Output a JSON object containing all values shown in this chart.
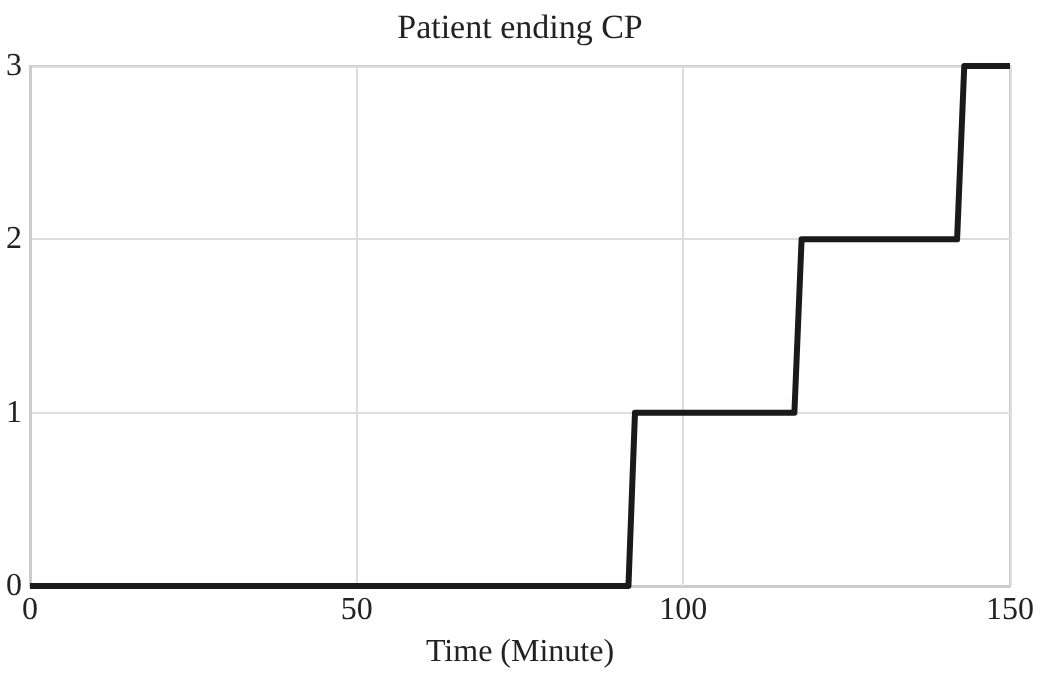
{
  "chart_data": {
    "type": "line",
    "title": "Patient ending CP",
    "xlabel": "Time (Minute)",
    "x": [
      0,
      91.6,
      92.6,
      117,
      118.1,
      141.9,
      143,
      150
    ],
    "series": [
      {
        "color": "#1a1a1a",
        "values": [
          0,
          0,
          1,
          1,
          2,
          2,
          3,
          3
        ]
      }
    ],
    "xlim": [
      0,
      150
    ],
    "xticks": [
      0,
      50,
      100,
      150
    ],
    "ylim": [
      0,
      3
    ],
    "yticks": [
      0,
      1,
      2,
      3
    ],
    "grid": true,
    "marker": "none",
    "line_style": "solid"
  }
}
